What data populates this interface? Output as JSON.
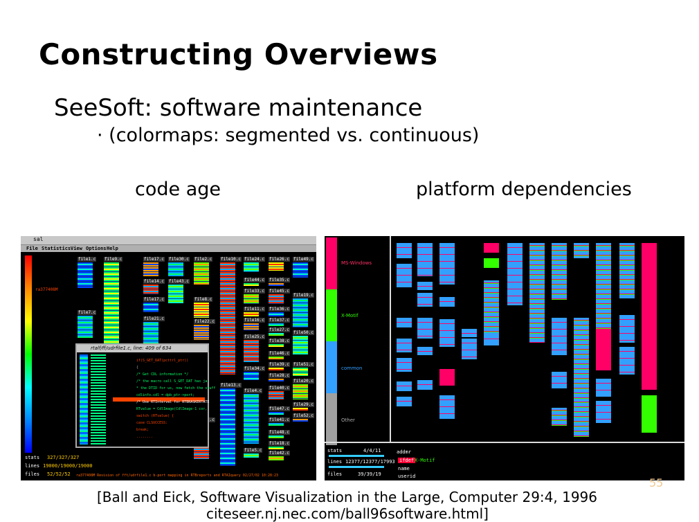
{
  "slide": {
    "title": "Constructing Overviews",
    "subtitle": "SeeSoft: software maintenance",
    "bullet": "· (colormaps: segmented vs. continuous)",
    "caption_left": "code age",
    "caption_right": "platform dependencies",
    "citation_line1": "[Ball and Eick, Software Visualization in the Large, Computer 29:4, 1996",
    "citation_line2": "citeseer.nj.nec.com/ball96software.html]",
    "page_number": "55"
  },
  "left_screenshot": {
    "window_title": "sal",
    "menu": [
      "File",
      "Statistics",
      "View",
      "Options",
      "Help"
    ],
    "color_key_label": "ra377408M",
    "file_labels": [
      "file1.c",
      "file7.c",
      "file9.c",
      "file17.c",
      "file14.c",
      "file17.c",
      "file21.c",
      "file30.c",
      "file43.c",
      "file2.c",
      "file8.c",
      "file22.c",
      "file31.c",
      "file10.c",
      "file13.c",
      "file24.c",
      "file44.c",
      "file33.c",
      "file11.c",
      "file16.c",
      "file25.c",
      "file34.c",
      "file4.c",
      "file5.c",
      "file26.c",
      "file35.c",
      "file45.c",
      "file36.c",
      "file37.c",
      "file27.c",
      "file38.c",
      "file46.c",
      "file39.c",
      "file28.c",
      "file40.c",
      "file47.c",
      "file41.c",
      "file48.c",
      "file18.c",
      "file42.c",
      "file49.c",
      "file19.c",
      "file50.c",
      "file51.c",
      "file20.c",
      "file29.c",
      "file52.c"
    ],
    "popup_title": "rtalf/ff/udrfile1.c, line: 409 of 634",
    "code_lines": [
      "if(S_GET_DAT(pcttrl_ptr))",
      "{",
      "/* Get CDL information */",
      "/* the macro call S_GET_DAT has ja",
      "* the DTID for us, now fetch the stuff",
      "cdlinfo.cdl = dpb_ptr->port;",
      "/* Use RTInterval for RTBRASKERTATE",
      "RTvalue = CdlImage(CdlImage-1 cor,",
      "switch (RTvalue) {",
      "case CLSUCCESS:",
      "break;",
      "........"
    ],
    "stats": [
      {
        "label": "stats",
        "value": "327/327/327"
      },
      {
        "label": "lines",
        "value": "19000/19000/19000"
      },
      {
        "label": "files",
        "value": "52/52/52"
      }
    ],
    "status_text": "ra377408M    Revision of fft/udrfile1.c b-port mapping in RTBreports and RTAIquery 02/27/02 10:28:23"
  },
  "right_screenshot": {
    "legend": [
      "MS-Windows",
      "X-Motif",
      "common",
      "Other"
    ],
    "stats": [
      {
        "label": "stats",
        "value": "4/4/11"
      },
      {
        "label": "lines",
        "value": "12377/12377/17993"
      },
      {
        "label": "files",
        "value": "39/39/19"
      }
    ],
    "fields": [
      "addmr",
      "ifdef",
      "X-Motif",
      "name",
      "userid"
    ]
  },
  "colors": {
    "ms_windows": "#ff0066",
    "x_motif": "#33ff00",
    "common": "#33a0ff",
    "other": "#a0a0a0"
  }
}
